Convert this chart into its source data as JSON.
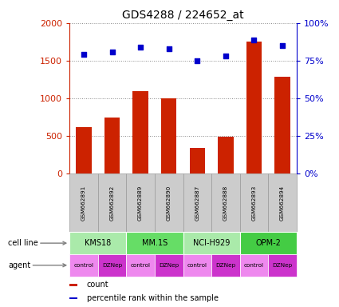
{
  "title": "GDS4288 / 224652_at",
  "samples": [
    "GSM662891",
    "GSM662892",
    "GSM662889",
    "GSM662890",
    "GSM662887",
    "GSM662888",
    "GSM662893",
    "GSM662894"
  ],
  "counts": [
    620,
    750,
    1100,
    1000,
    340,
    490,
    1750,
    1290
  ],
  "percentile_ranks": [
    79,
    81,
    84,
    83,
    75,
    78,
    89,
    85
  ],
  "bar_color": "#cc2200",
  "dot_color": "#0000cc",
  "left_ylim": [
    0,
    2000
  ],
  "right_ylim": [
    0,
    100
  ],
  "left_yticks": [
    0,
    500,
    1000,
    1500,
    2000
  ],
  "right_yticks": [
    0,
    25,
    50,
    75,
    100
  ],
  "right_yticklabels": [
    "0%",
    "25%",
    "50%",
    "75%",
    "100%"
  ],
  "cell_lines": [
    {
      "name": "KMS18",
      "start": 0,
      "end": 1,
      "color": "#aaeaaa"
    },
    {
      "name": "MM.1S",
      "start": 2,
      "end": 3,
      "color": "#66dd66"
    },
    {
      "name": "NCI-H929",
      "start": 4,
      "end": 5,
      "color": "#aaeaaa"
    },
    {
      "name": "OPM-2",
      "start": 6,
      "end": 7,
      "color": "#44cc44"
    }
  ],
  "agents": [
    "control",
    "DZNep",
    "control",
    "DZNep",
    "control",
    "DZNep",
    "control",
    "DZNep"
  ],
  "agent_color_control": "#ee88ee",
  "agent_color_dznep": "#cc33cc",
  "sample_bg_color": "#cccccc",
  "sample_border_color": "#999999",
  "grid_color": "#888888",
  "left_axis_color": "#cc2200",
  "right_axis_color": "#0000cc",
  "legend_items": [
    {
      "label": "count",
      "color": "#cc2200"
    },
    {
      "label": "percentile rank within the sample",
      "color": "#0000cc"
    }
  ]
}
